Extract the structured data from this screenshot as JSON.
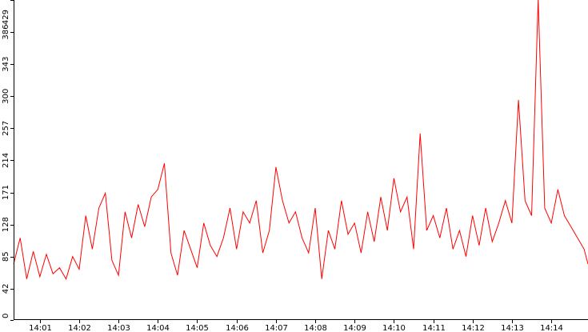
{
  "chart_data": {
    "type": "line",
    "title": "",
    "xlabel": "",
    "ylabel": "",
    "ylim": [
      0,
      429
    ],
    "xlim": [
      "14:00:20",
      "14:14:56"
    ],
    "y_ticks": [
      0,
      42,
      85,
      128,
      171,
      214,
      257,
      300,
      343,
      386,
      429
    ],
    "x_ticks": [
      "14:01",
      "14:02",
      "14:03",
      "14:04",
      "14:05",
      "14:06",
      "14:07",
      "14:08",
      "14:09",
      "14:10",
      "14:11",
      "14:12",
      "14:13",
      "14:14"
    ],
    "grid": false,
    "legend": "none",
    "series_color": "#ff0000",
    "series": [
      {
        "name": "",
        "x": [
          "14:00:20",
          "14:00:30",
          "14:00:40",
          "14:00:50",
          "14:01:00",
          "14:01:10",
          "14:01:20",
          "14:01:30",
          "14:01:40",
          "14:01:50",
          "14:02:00",
          "14:02:10",
          "14:02:20",
          "14:02:30",
          "14:02:40",
          "14:02:50",
          "14:03:00",
          "14:03:10",
          "14:03:20",
          "14:03:30",
          "14:03:40",
          "14:03:50",
          "14:04:00",
          "14:04:10",
          "14:04:20",
          "14:04:30",
          "14:04:40",
          "14:04:50",
          "14:05:00",
          "14:05:10",
          "14:05:20",
          "14:05:30",
          "14:05:40",
          "14:05:50",
          "14:06:00",
          "14:06:10",
          "14:06:20",
          "14:06:30",
          "14:06:40",
          "14:06:50",
          "14:07:00",
          "14:07:10",
          "14:07:20",
          "14:07:30",
          "14:07:40",
          "14:07:50",
          "14:08:00",
          "14:08:10",
          "14:08:20",
          "14:08:30",
          "14:08:40",
          "14:08:50",
          "14:09:00",
          "14:09:10",
          "14:09:20",
          "14:09:30",
          "14:09:40",
          "14:09:50",
          "14:10:00",
          "14:10:10",
          "14:10:20",
          "14:10:30",
          "14:10:40",
          "14:10:50",
          "14:11:00",
          "14:11:10",
          "14:11:20",
          "14:11:30",
          "14:11:40",
          "14:11:50",
          "14:12:00",
          "14:12:10",
          "14:12:20",
          "14:12:30",
          "14:12:40",
          "14:12:50",
          "14:13:00",
          "14:13:10",
          "14:13:20",
          "14:13:30",
          "14:13:40",
          "14:13:50",
          "14:14:00",
          "14:14:10",
          "14:14:20",
          "14:14:30",
          "14:14:40",
          "14:14:50",
          "14:14:56"
        ],
        "values": [
          75,
          110,
          55,
          92,
          58,
          88,
          62,
          70,
          55,
          85,
          68,
          140,
          95,
          150,
          170,
          80,
          60,
          145,
          110,
          155,
          125,
          165,
          175,
          210,
          90,
          60,
          120,
          95,
          70,
          130,
          100,
          85,
          110,
          150,
          95,
          145,
          130,
          160,
          90,
          120,
          205,
          160,
          130,
          145,
          110,
          90,
          150,
          55,
          120,
          95,
          160,
          115,
          130,
          90,
          145,
          105,
          165,
          120,
          190,
          145,
          165,
          95,
          250,
          120,
          140,
          110,
          150,
          95,
          120,
          85,
          140,
          100,
          150,
          105,
          130,
          160,
          130,
          295,
          160,
          140,
          430,
          150,
          130,
          175,
          140,
          125,
          110,
          95,
          75
        ]
      }
    ]
  }
}
